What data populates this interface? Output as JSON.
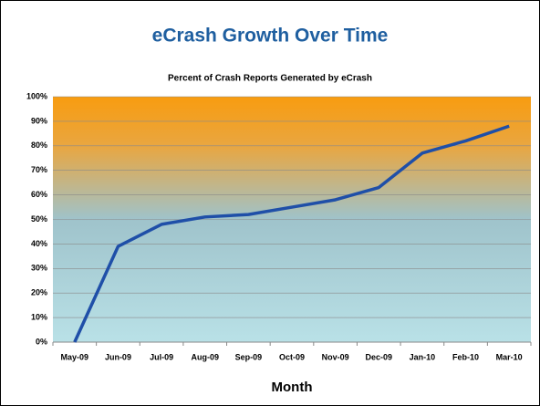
{
  "chart_data": {
    "type": "line",
    "title": "eCrash Growth Over Time",
    "subtitle": "Percent of Crash Reports Generated by eCrash",
    "x_label": "Month",
    "categories": [
      "May-09",
      "Jun-09",
      "Jul-09",
      "Aug-09",
      "Sep-09",
      "Oct-09",
      "Nov-09",
      "Dec-09",
      "Jan-10",
      "Feb-10",
      "Mar-10"
    ],
    "values": [
      0,
      39,
      48,
      51,
      52,
      55,
      58,
      63,
      77,
      82,
      88
    ],
    "color": "#1f4fa8",
    "ylim": [
      0,
      100
    ],
    "yticks": [
      {
        "value": 0,
        "label": "0%"
      },
      {
        "value": 10,
        "label": "10%"
      },
      {
        "value": 20,
        "label": "20%"
      },
      {
        "value": 30,
        "label": "30%"
      },
      {
        "value": 40,
        "label": "40%"
      },
      {
        "value": 50,
        "label": "50%"
      },
      {
        "value": 60,
        "label": "60%"
      },
      {
        "value": 70,
        "label": "70%"
      },
      {
        "value": 80,
        "label": "80%"
      },
      {
        "value": 90,
        "label": "90%"
      },
      {
        "value": 100,
        "label": "100%"
      }
    ],
    "grid": true
  }
}
